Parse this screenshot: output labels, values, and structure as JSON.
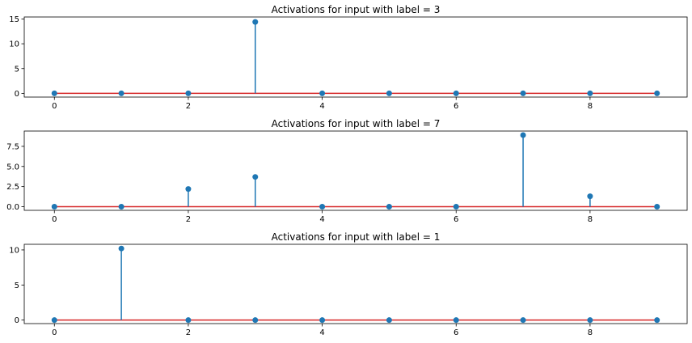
{
  "chart_data": [
    {
      "type": "stem",
      "title": "Activations for input with label = 3",
      "x": [
        0,
        1,
        2,
        3,
        4,
        5,
        6,
        7,
        8,
        9
      ],
      "values": [
        0,
        0,
        0,
        14.4,
        0,
        0,
        0,
        0,
        0,
        0
      ],
      "xlim": [
        -0.45,
        9.45
      ],
      "ylim": [
        -0.75,
        15.4
      ],
      "xticks": [
        0,
        2,
        4,
        6,
        8
      ],
      "yticks": [
        0,
        5,
        10,
        15
      ],
      "ytick_labels": [
        "0",
        "5",
        "10",
        "15"
      ],
      "xlabel": "",
      "ylabel": "",
      "grid": false,
      "stem_color": "#1f77b4",
      "baseline_color": "#d62728"
    },
    {
      "type": "stem",
      "title": "Activations for input with label = 7",
      "x": [
        0,
        1,
        2,
        3,
        4,
        5,
        6,
        7,
        8,
        9
      ],
      "values": [
        0,
        0,
        2.2,
        3.7,
        0,
        0,
        0,
        8.9,
        1.3,
        0
      ],
      "xlim": [
        -0.45,
        9.45
      ],
      "ylim": [
        -0.45,
        9.4
      ],
      "xticks": [
        0,
        2,
        4,
        6,
        8
      ],
      "yticks": [
        0,
        2.5,
        5,
        7.5
      ],
      "ytick_labels": [
        "0.0",
        "2.5",
        "5.0",
        "7.5"
      ],
      "xlabel": "",
      "ylabel": "",
      "grid": false,
      "stem_color": "#1f77b4",
      "baseline_color": "#d62728"
    },
    {
      "type": "stem",
      "title": "Activations for input with label = 1",
      "x": [
        0,
        1,
        2,
        3,
        4,
        5,
        6,
        7,
        8,
        9
      ],
      "values": [
        0,
        10.2,
        0,
        0,
        0,
        0,
        0,
        0,
        0,
        0
      ],
      "xlim": [
        -0.45,
        9.45
      ],
      "ylim": [
        -0.5,
        10.8
      ],
      "xticks": [
        0,
        2,
        4,
        6,
        8
      ],
      "yticks": [
        0,
        5,
        10
      ],
      "ytick_labels": [
        "0",
        "5",
        "10"
      ],
      "xlabel": "",
      "ylabel": "",
      "grid": false,
      "stem_color": "#1f77b4",
      "baseline_color": "#d62728"
    }
  ]
}
